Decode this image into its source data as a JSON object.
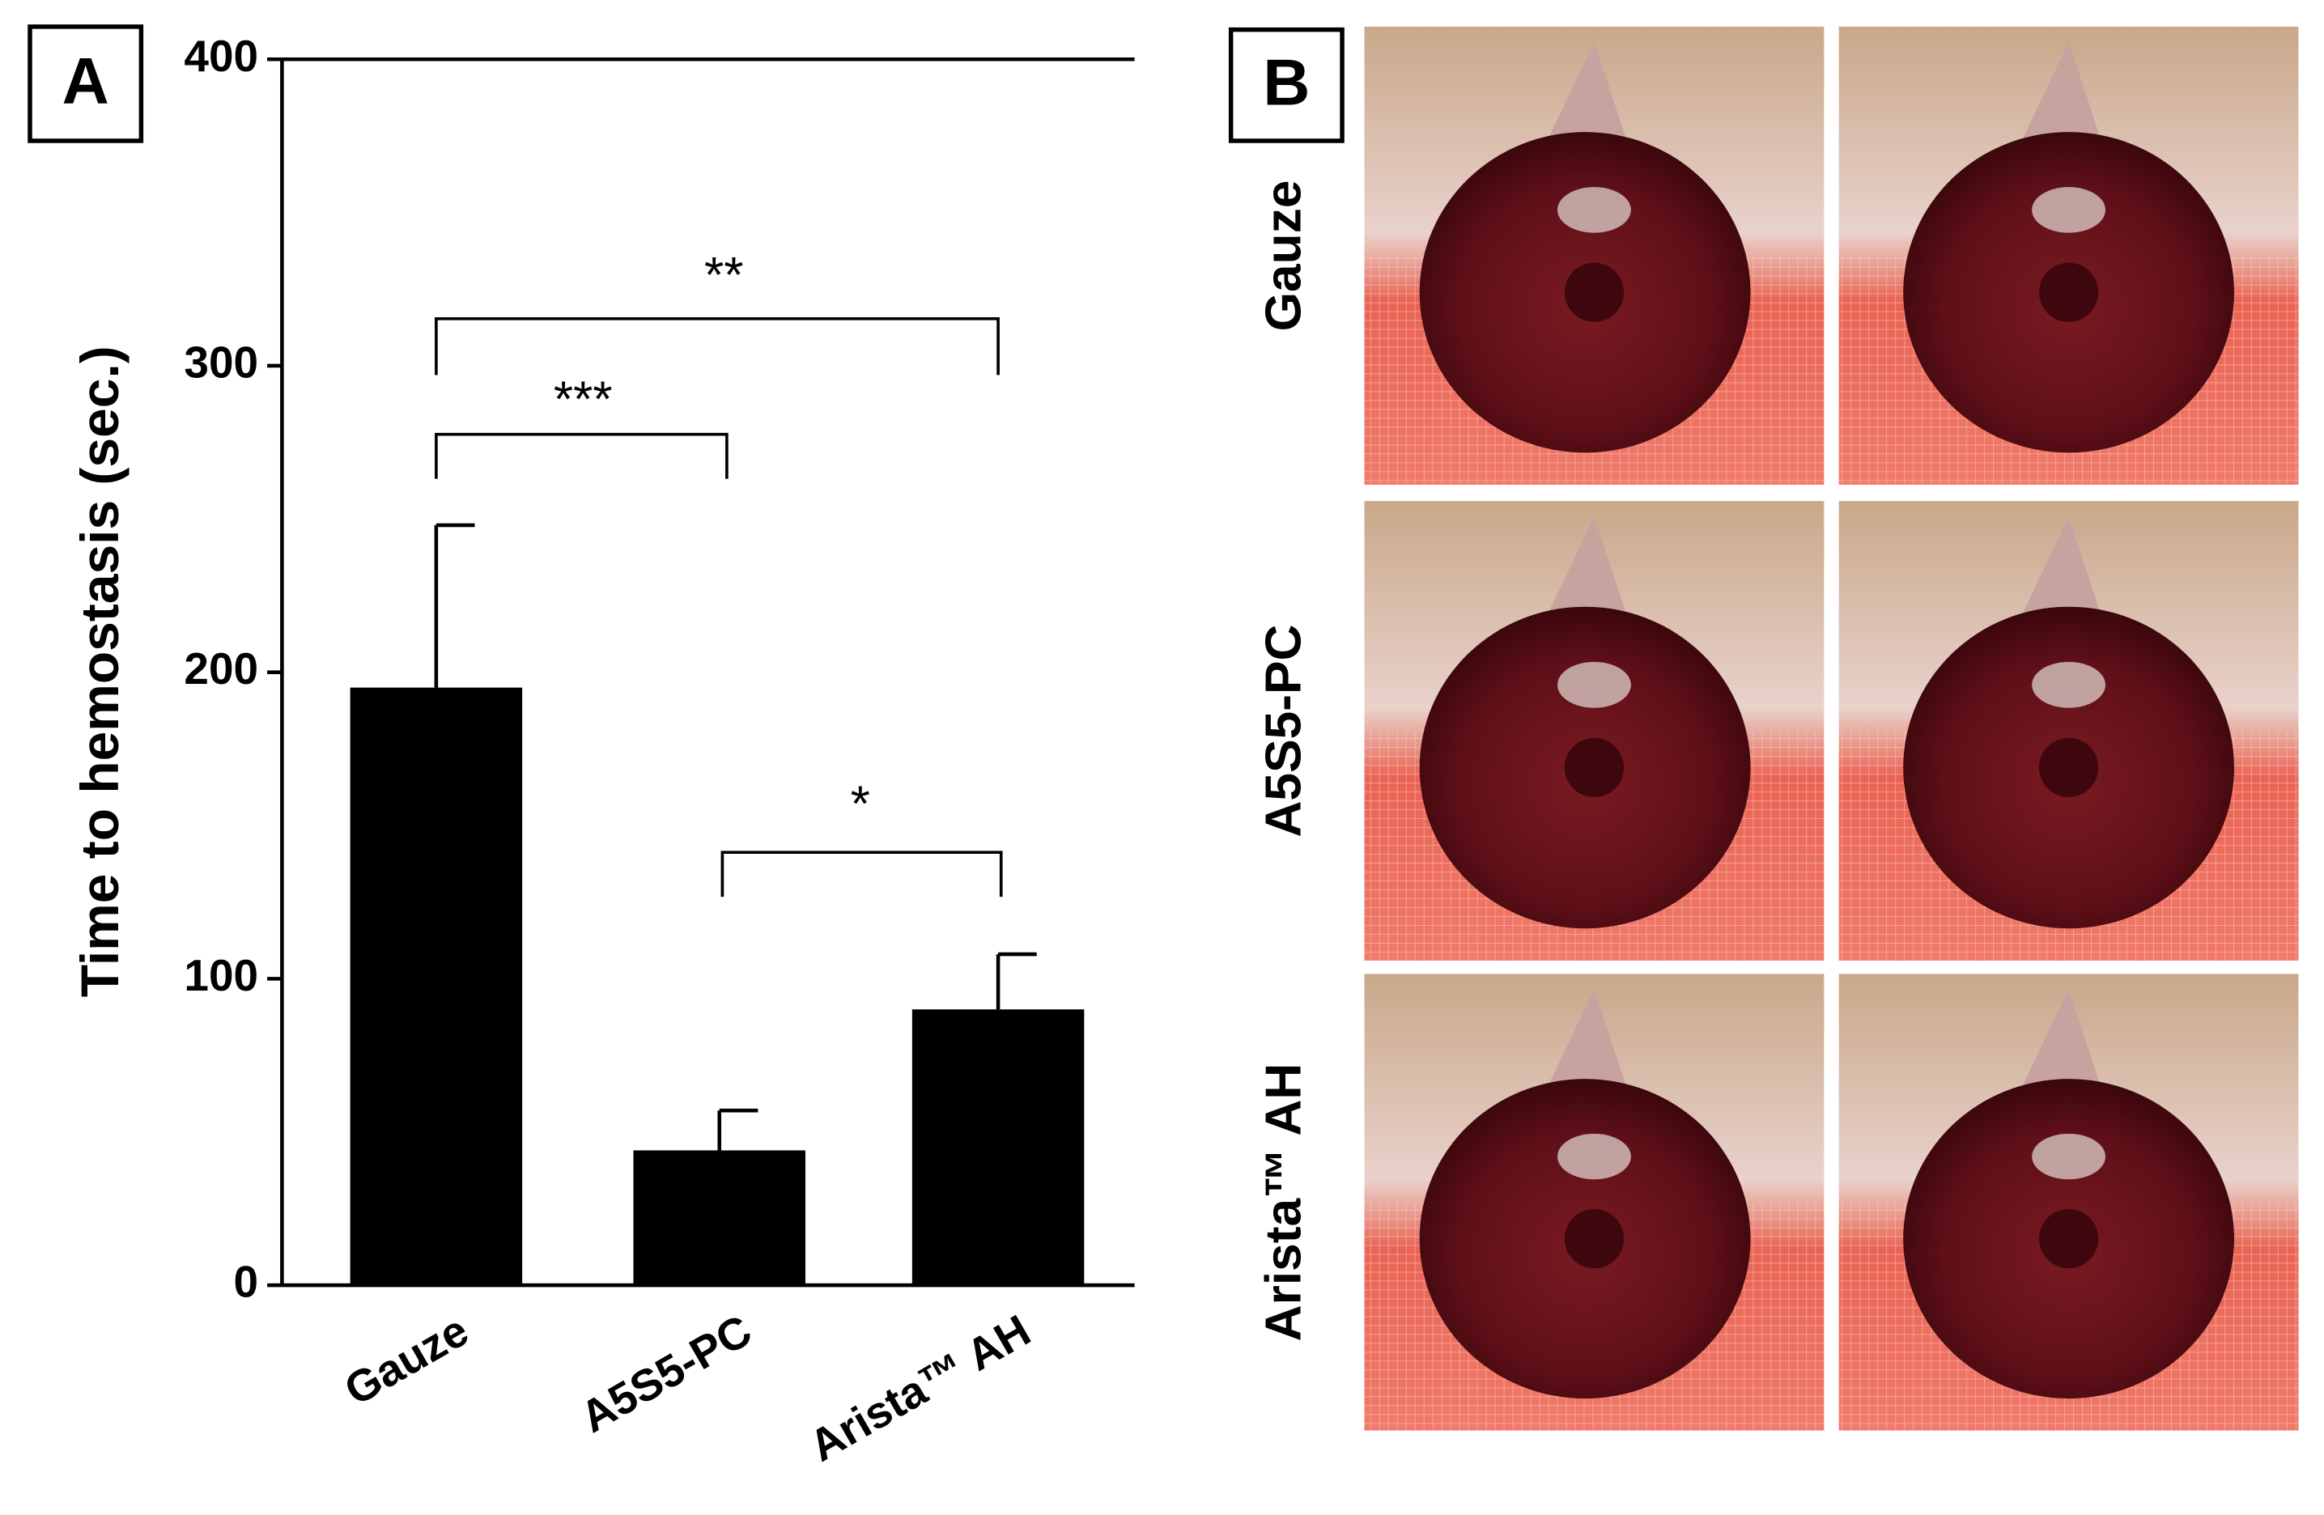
{
  "chart_data": {
    "type": "bar",
    "panel_label": "A",
    "ylabel": "Time to hemostasis (sec.)",
    "categories": [
      "Gauze",
      "A5S5-PC",
      "Arista™ AH"
    ],
    "values": [
      195,
      44,
      90
    ],
    "errors": [
      53,
      13,
      18
    ],
    "color": "#000000",
    "ylim": [
      0,
      400
    ],
    "yticks": [
      0,
      100,
      200,
      300,
      400
    ],
    "annotations": [
      "***",
      "**",
      "*"
    ]
  },
  "photo_panel": {
    "panel_label": "B",
    "row_labels": [
      "Gauze",
      "A5S5-PC",
      "Arista™ AH"
    ]
  }
}
